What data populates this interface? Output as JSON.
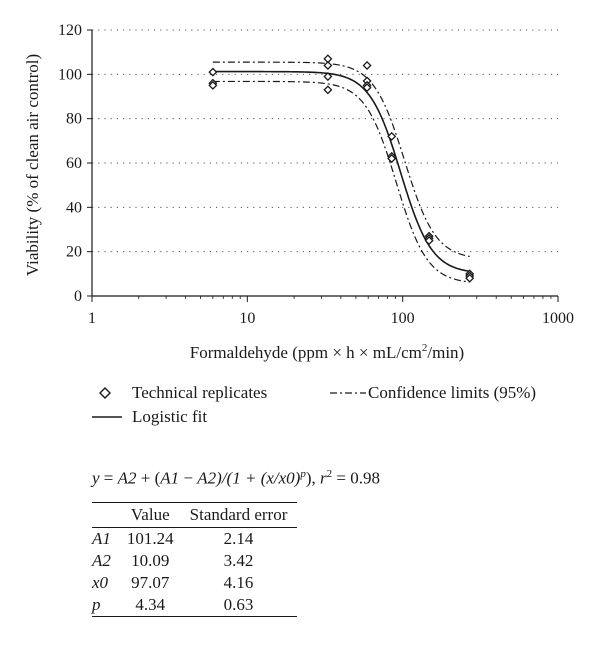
{
  "chart_data": {
    "type": "scatter",
    "ylabel": "Viability (% of clean air control)",
    "xlabel_parts": {
      "pre": "Formaldehyde (ppm × h × mL/cm",
      "sup": "2",
      "post": "/min)"
    },
    "x_scale": "log",
    "xlim": [
      1,
      1000
    ],
    "ylim": [
      0,
      120
    ],
    "x_ticks": [
      "1",
      "10",
      "100",
      "1000"
    ],
    "y_ticks": [
      "0",
      "20",
      "40",
      "60",
      "80",
      "100",
      "120"
    ],
    "grid": "horizontal-dotted",
    "series": [
      {
        "name": "Technical replicates",
        "kind": "points",
        "points": [
          [
            6,
            101
          ],
          [
            6,
            96
          ],
          [
            6,
            95
          ],
          [
            33,
            107
          ],
          [
            33,
            104
          ],
          [
            33,
            99
          ],
          [
            33,
            93
          ],
          [
            59,
            104
          ],
          [
            59,
            97
          ],
          [
            59,
            95
          ],
          [
            59,
            94
          ],
          [
            85,
            72
          ],
          [
            85,
            63
          ],
          [
            85,
            62
          ],
          [
            148,
            27
          ],
          [
            148,
            26
          ],
          [
            148,
            25
          ],
          [
            270,
            10
          ],
          [
            270,
            9
          ],
          [
            270,
            8
          ]
        ]
      },
      {
        "name": "Logistic fit",
        "kind": "fit",
        "A1": 101.24,
        "A2": 10.09,
        "x0": 97.07,
        "p": 4.34
      },
      {
        "name": "Confidence limits (95%)",
        "kind": "band",
        "upper": {
          "A1": 105.5,
          "A2": 16.5,
          "x0": 103,
          "p": 4.34
        },
        "lower": {
          "A1": 96.8,
          "A2": 5.5,
          "x0": 91,
          "p": 4.34
        },
        "x_range": [
          6,
          270
        ]
      }
    ],
    "legend": {
      "markers": "Technical replicates",
      "confidence": "Confidence limits (95%)",
      "fit": "Logistic fit"
    }
  },
  "equation": {
    "lhs": "y",
    "eq": " = ",
    "a2": "A2",
    "plus": " + ",
    "open": "(",
    "a1": "A1",
    "minus": " − ",
    "a2b": "A2",
    "mid": ")/(1 + (x/x0)",
    "p": "p",
    "close": "), ",
    "r": "r",
    "r_sup": "2",
    "r_val": " = 0.98"
  },
  "params_table": {
    "headers": [
      "",
      "Value",
      "Standard error"
    ],
    "rows": [
      {
        "name": "A1",
        "value": "101.24",
        "se": "2.14"
      },
      {
        "name": "A2",
        "value": "10.09",
        "se": "3.42"
      },
      {
        "name": "x0",
        "value": "97.07",
        "se": "4.16"
      },
      {
        "name": "p",
        "value": "4.34",
        "se": "0.63"
      }
    ]
  }
}
